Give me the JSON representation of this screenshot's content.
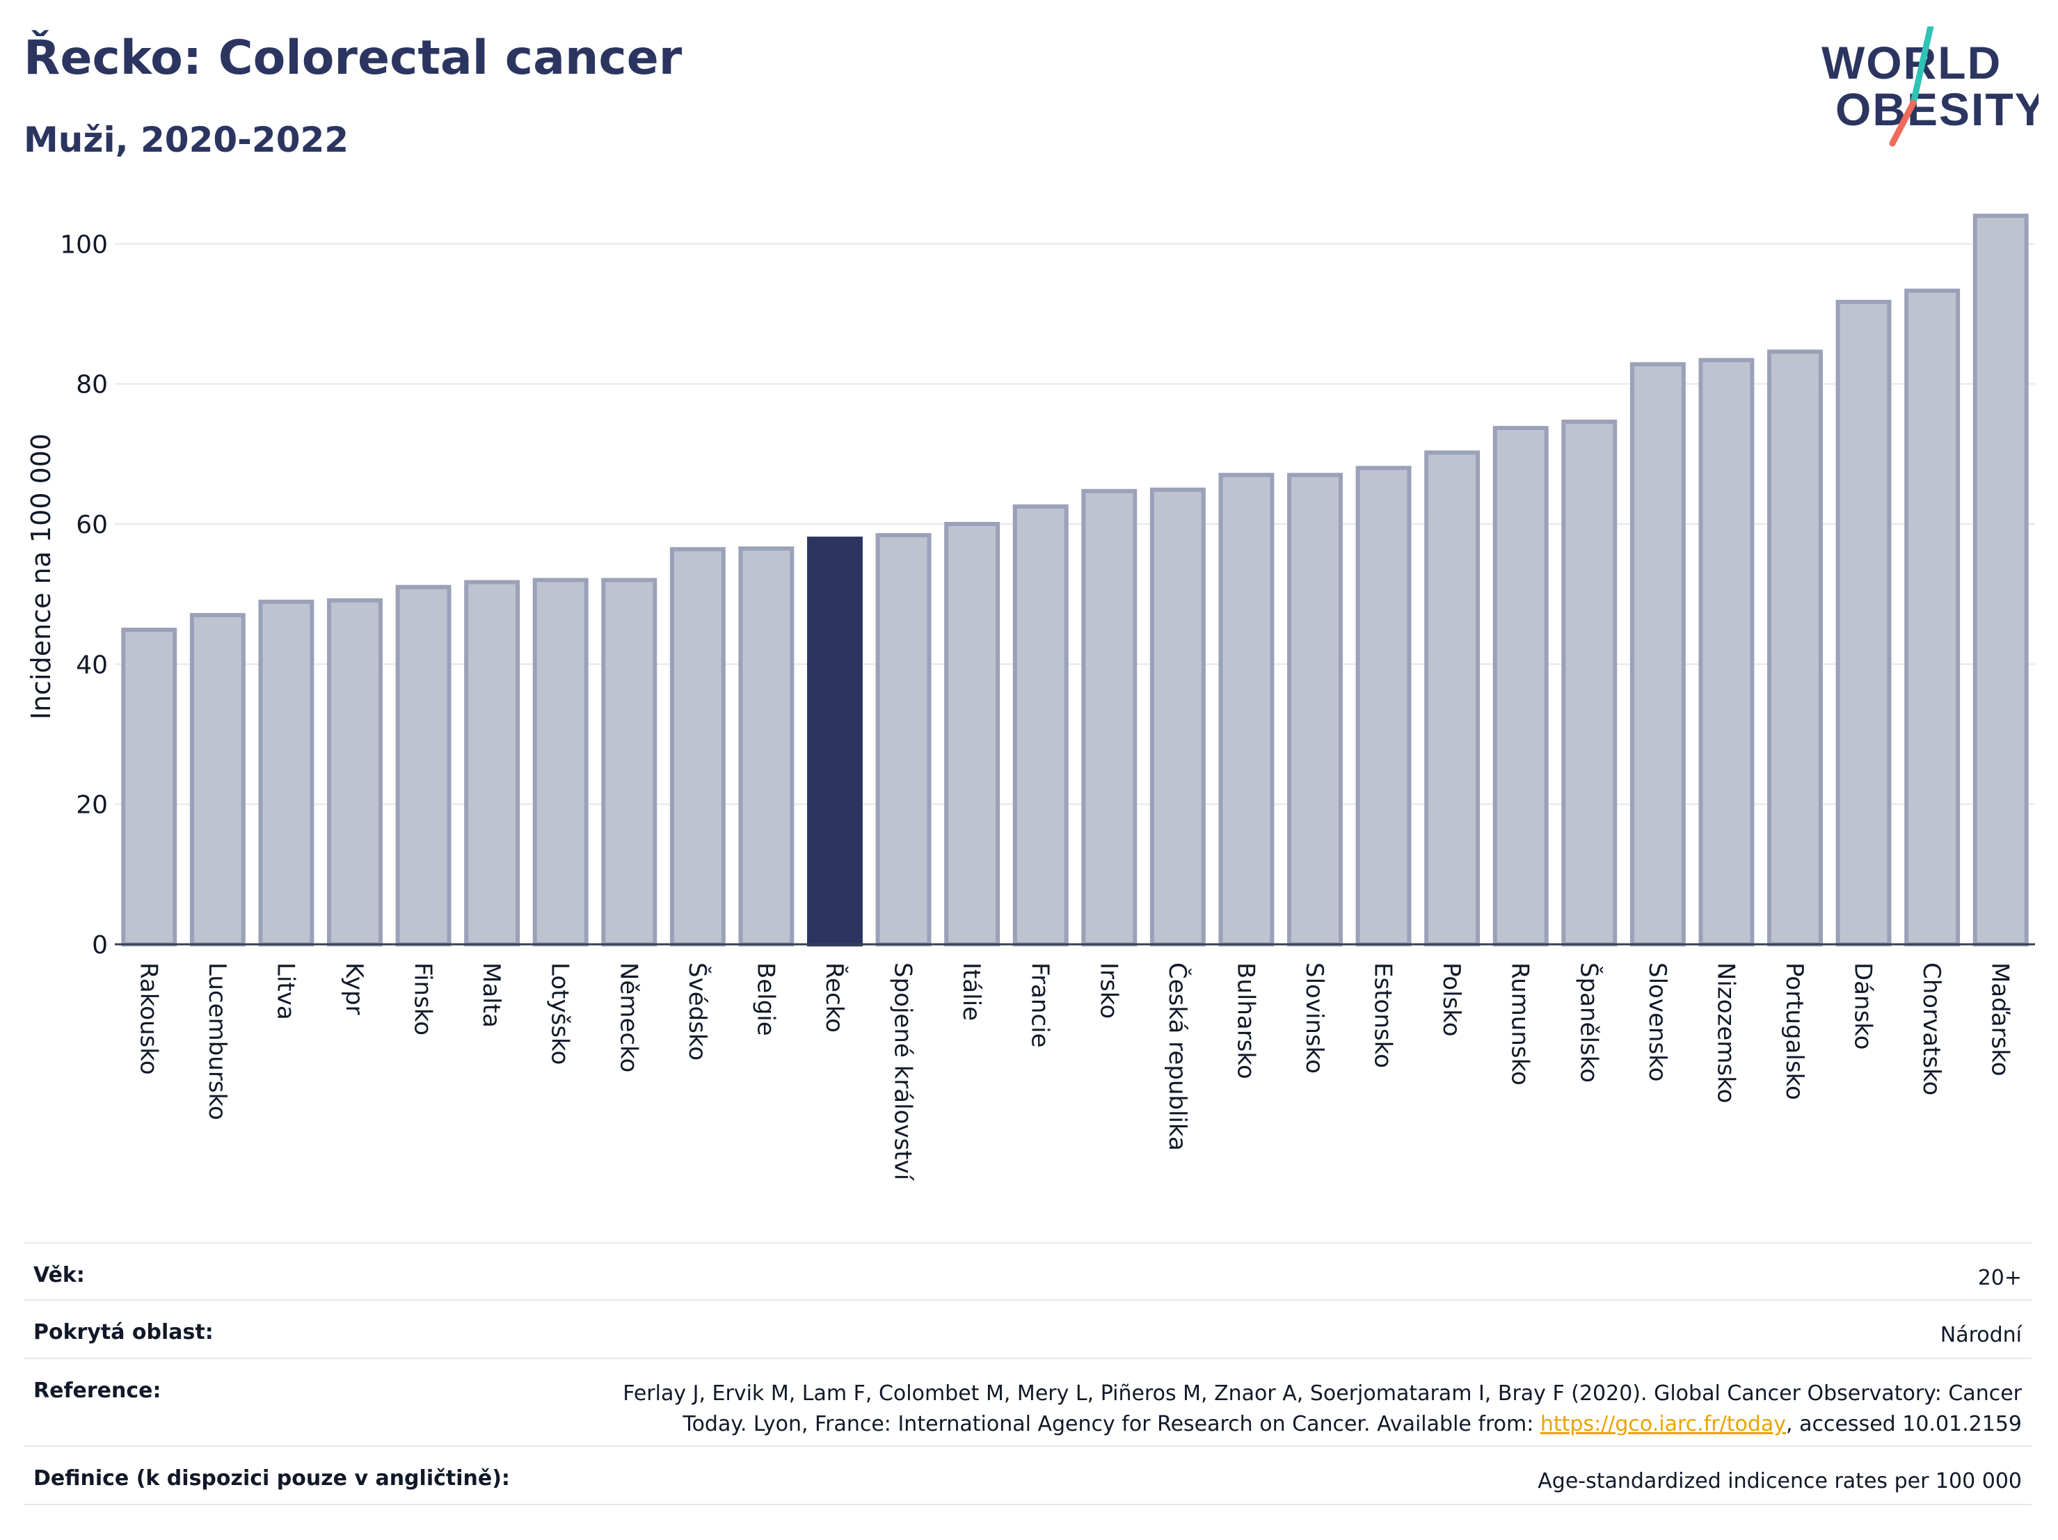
{
  "header": {
    "title": "Řecko: Colorectal cancer",
    "subtitle": "Muži, 2020-2022"
  },
  "logo": {
    "line1": "WORLD",
    "line2": "OBESITY"
  },
  "colors": {
    "bar": "#bfc3d0",
    "bar_border": "#9aa1b8",
    "highlight": "#2b3560",
    "logo_teal": "#2ec4b6",
    "logo_red": "#ef6b5b",
    "link": "#e8a400"
  },
  "chart_data": {
    "type": "bar",
    "ylabel": "Incidence na 100 000",
    "ylim": [
      0,
      105
    ],
    "yticks": [
      0,
      20,
      40,
      60,
      80,
      100
    ],
    "grid": true,
    "highlight": "Řecko",
    "categories": [
      "Rakousko",
      "Lucembursko",
      "Litva",
      "Kypr",
      "Finsko",
      "Malta",
      "Lotyšsko",
      "Německo",
      "Švédsko",
      "Belgie",
      "Řecko",
      "Spojené království",
      "Itálie",
      "Francie",
      "Irsko",
      "Česká republika",
      "Bulharsko",
      "Slovinsko",
      "Estonsko",
      "Polsko",
      "Rumunsko",
      "Španělsko",
      "Slovensko",
      "Nizozemsko",
      "Portugalsko",
      "Dánsko",
      "Chorvatsko",
      "Maďarsko"
    ],
    "values": [
      44.9,
      47.0,
      48.9,
      49.1,
      51.0,
      51.7,
      52.0,
      52.0,
      56.4,
      56.5,
      57.9,
      58.4,
      60.0,
      62.5,
      64.7,
      64.9,
      67.0,
      67.0,
      68.0,
      70.2,
      73.7,
      74.6,
      82.8,
      83.4,
      84.6,
      91.7,
      93.3,
      104.0
    ]
  },
  "info": {
    "rows": [
      {
        "label": "Věk:",
        "value": "20+"
      },
      {
        "label": "Pokrytá oblast:",
        "value": "Národní"
      },
      {
        "label": "Reference:",
        "value_line1": "Ferlay J, Ervik M, Lam F, Colombet M, Mery L, Piñeros M, Znaor A, Soerjomataram I, Bray F (2020). Global Cancer Observatory: Cancer",
        "value_line2_pre": "Today. Lyon, France: International Agency for Research on Cancer. Available from: ",
        "link": "https://gco.iarc.fr/today",
        "value_line2_post": ", accessed 10.01.2159"
      },
      {
        "label": "Definice (k dispozici pouze v angličtině):",
        "value": "Age-standardized indicence rates per 100 000"
      }
    ]
  }
}
